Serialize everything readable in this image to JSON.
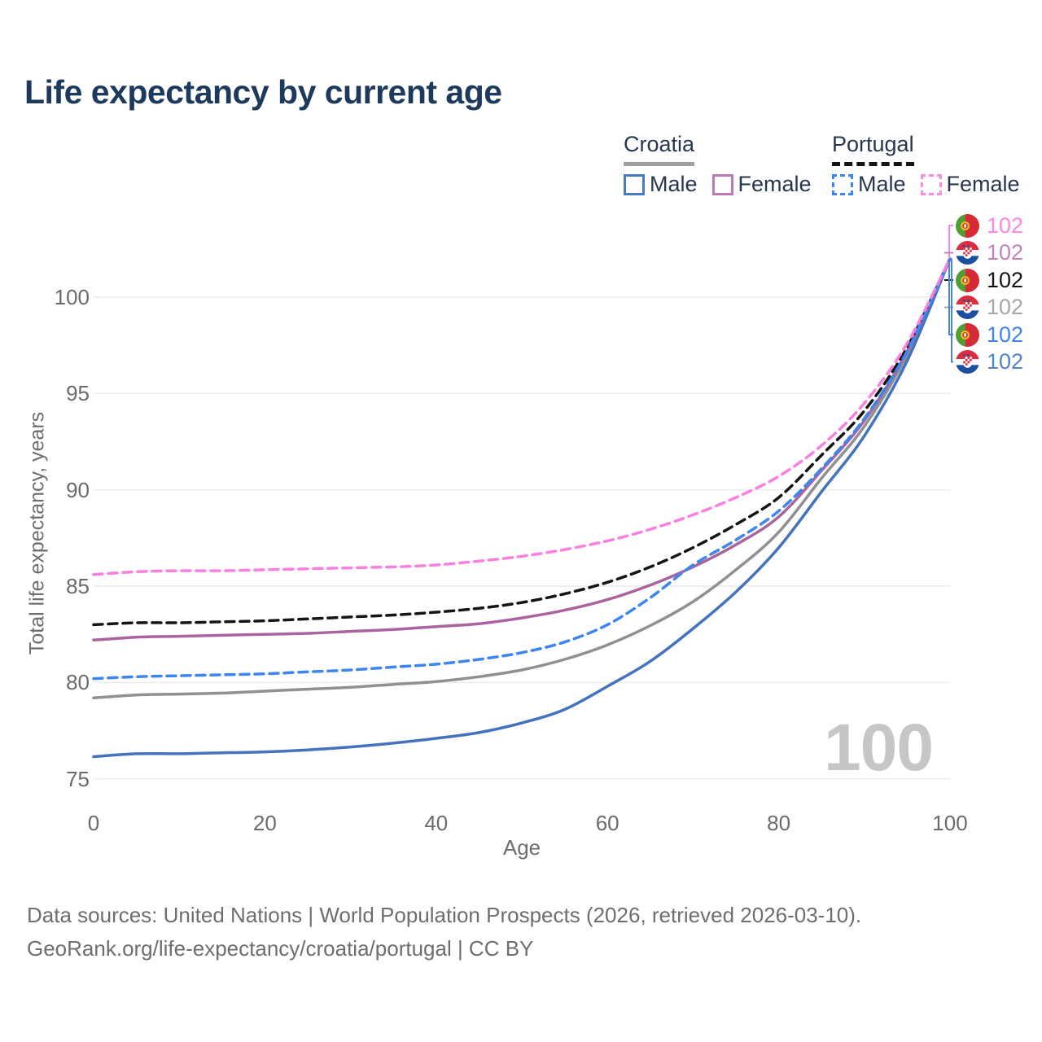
{
  "title": "Life expectancy by current age",
  "legend": {
    "croatia": {
      "label": "Croatia",
      "male": "Male",
      "female": "Female",
      "line_color": "#9e9e9e",
      "male_color": "#4a7ac2",
      "female_color": "#bb79b5"
    },
    "portugal": {
      "label": "Portugal",
      "male": "Male",
      "female": "Female",
      "line_color": "#141414",
      "male_color": "#3d85f0",
      "female_color": "#fb8ae2"
    }
  },
  "axes": {
    "x": {
      "label": "Age",
      "ticks": [
        0,
        20,
        40,
        60,
        80,
        100
      ],
      "range": [
        0,
        100
      ]
    },
    "y": {
      "label": "Total life expectancy, years",
      "ticks": [
        75,
        80,
        85,
        90,
        95,
        100
      ],
      "range": [
        75,
        103
      ]
    }
  },
  "watermark": "100",
  "right_labels": [
    {
      "series": "Portugal Female",
      "flag": "portugal",
      "value": "102",
      "color": "#fc87e2",
      "connector": "elbow-up"
    },
    {
      "series": "Croatia Female",
      "flag": "croatia",
      "value": "102",
      "color": "#c083bc",
      "connector": "tick"
    },
    {
      "series": "Portugal Total",
      "flag": "portugal",
      "value": "102",
      "color": "#141414",
      "connector": "tick"
    },
    {
      "series": "Croatia Total",
      "flag": "croatia",
      "value": "102",
      "color": "#a6a6a6",
      "connector": "tick"
    },
    {
      "series": "Portugal Male",
      "flag": "portugal",
      "value": "102",
      "color": "#3f83f2",
      "connector": "elbow-down"
    },
    {
      "series": "Croatia Male",
      "flag": "croatia",
      "value": "102",
      "color": "#5383cd",
      "connector": "elbow-down"
    }
  ],
  "footer": {
    "line1": "Data sources: United Nations | World Population Prospects (2026, retrieved 2026-03-10).",
    "line2": "GeoRank.org/life-expectancy/croatia/portugal | CC BY"
  },
  "chart_data": {
    "type": "line",
    "title": "Life expectancy by current age",
    "xlabel": "Age",
    "ylabel": "Total life expectancy, years",
    "xlim": [
      0,
      100
    ],
    "ylim": [
      75,
      103
    ],
    "grid": "horizontal",
    "legend_position": "top-right",
    "x": [
      0,
      5,
      10,
      15,
      20,
      25,
      30,
      35,
      40,
      45,
      50,
      55,
      60,
      65,
      70,
      75,
      80,
      85,
      90,
      95,
      100
    ],
    "series": [
      {
        "name": "Croatia Total",
        "country": "Croatia",
        "sex": "Both",
        "style": "solid",
        "color": "#909090",
        "end_label": 102,
        "values": [
          79.2,
          79.35,
          79.4,
          79.45,
          79.55,
          79.65,
          79.75,
          79.9,
          80.05,
          80.3,
          80.65,
          81.2,
          81.95,
          82.95,
          84.2,
          85.85,
          87.8,
          90.6,
          93.3,
          97.0,
          102
        ]
      },
      {
        "name": "Croatia Male",
        "country": "Croatia",
        "sex": "Male",
        "style": "solid",
        "color": "#4472bd",
        "end_label": 102,
        "values": [
          76.15,
          76.3,
          76.3,
          76.35,
          76.4,
          76.5,
          76.65,
          76.85,
          77.1,
          77.4,
          77.9,
          78.6,
          79.8,
          81.1,
          82.8,
          84.7,
          87.0,
          89.9,
          92.8,
          96.7,
          102
        ]
      },
      {
        "name": "Croatia Female",
        "country": "Croatia",
        "sex": "Female",
        "style": "solid",
        "color": "#a9649f",
        "end_label": 102,
        "values": [
          82.2,
          82.35,
          82.4,
          82.45,
          82.5,
          82.55,
          82.65,
          82.75,
          82.9,
          83.05,
          83.35,
          83.75,
          84.3,
          85.05,
          86.0,
          87.15,
          88.6,
          91.0,
          93.6,
          97.2,
          102
        ]
      },
      {
        "name": "Portugal Total",
        "country": "Portugal",
        "sex": "Both",
        "style": "dashed",
        "color": "#151515",
        "end_label": 102,
        "values": [
          83.0,
          83.1,
          83.1,
          83.15,
          83.2,
          83.3,
          83.4,
          83.5,
          83.65,
          83.85,
          84.15,
          84.6,
          85.2,
          86.0,
          87.0,
          88.2,
          89.6,
          91.8,
          94.1,
          97.4,
          102
        ]
      },
      {
        "name": "Portugal Male",
        "country": "Portugal",
        "sex": "Male",
        "style": "dashed",
        "color": "#3d85f0",
        "end_label": 102,
        "values": [
          80.2,
          80.3,
          80.35,
          80.4,
          80.45,
          80.55,
          80.65,
          80.8,
          80.95,
          81.2,
          81.55,
          82.1,
          83.0,
          84.4,
          86.1,
          87.4,
          88.9,
          91.1,
          93.7,
          97.2,
          102
        ]
      },
      {
        "name": "Portugal Female",
        "country": "Portugal",
        "sex": "Female",
        "style": "dashed",
        "color": "#fa80e0",
        "end_label": 102,
        "values": [
          85.6,
          85.75,
          85.8,
          85.8,
          85.85,
          85.9,
          85.95,
          86.0,
          86.1,
          86.3,
          86.55,
          86.9,
          87.35,
          87.95,
          88.7,
          89.6,
          90.7,
          92.3,
          94.5,
          97.6,
          102
        ]
      }
    ]
  }
}
